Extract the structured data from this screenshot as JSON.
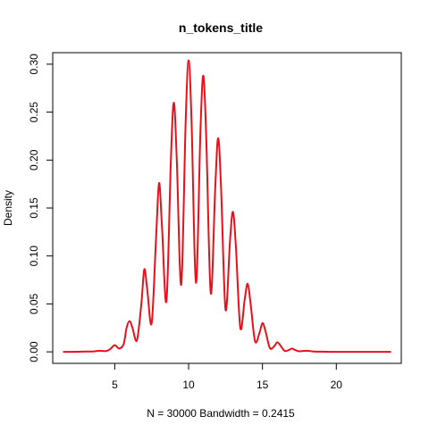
{
  "chart_data": {
    "type": "line",
    "title": "n_tokens_title",
    "xlabel": "N = 30000   Bandwidth = 0.2415",
    "ylabel": "Density",
    "xlim": [
      0.8,
      24.4
    ],
    "ylim": [
      -0.012,
      0.312
    ],
    "xticks": [
      5,
      10,
      15,
      20
    ],
    "yticks": [
      0.0,
      0.05,
      0.1,
      0.15,
      0.2,
      0.25,
      0.3
    ],
    "ytick_labels": [
      "0.00",
      "0.05",
      "0.10",
      "0.15",
      "0.20",
      "0.25",
      "0.30"
    ],
    "grid": false,
    "line_color": "#e8101a",
    "series": [
      {
        "x": [
          1.5,
          2,
          3,
          3.6,
          4,
          4.4,
          4.7,
          5,
          5.3,
          5.6,
          5.8,
          6,
          6.2,
          6.5,
          6.8,
          7,
          7.2,
          7.5,
          7.8,
          8,
          8.2,
          8.5,
          8.8,
          9,
          9.2,
          9.5,
          9.8,
          10,
          10.2,
          10.5,
          10.8,
          11,
          11.2,
          11.5,
          11.8,
          12,
          12.2,
          12.5,
          12.8,
          13,
          13.2,
          13.5,
          13.8,
          14,
          14.2,
          14.5,
          14.8,
          15,
          15.2,
          15.5,
          15.8,
          16,
          16.2,
          16.5,
          16.8,
          17,
          17.2,
          17.5,
          18,
          18.5,
          19,
          20,
          22,
          23.7
        ],
        "y": [
          0,
          0,
          0.0003,
          0.0005,
          0.0012,
          0.0008,
          0.003,
          0.007,
          0.0035,
          0.008,
          0.025,
          0.032,
          0.025,
          0.012,
          0.05,
          0.086,
          0.065,
          0.03,
          0.12,
          0.176,
          0.13,
          0.053,
          0.2,
          0.26,
          0.2,
          0.07,
          0.24,
          0.304,
          0.24,
          0.072,
          0.23,
          0.288,
          0.22,
          0.061,
          0.17,
          0.223,
          0.17,
          0.044,
          0.115,
          0.146,
          0.11,
          0.025,
          0.055,
          0.071,
          0.05,
          0.011,
          0.02,
          0.03,
          0.022,
          0.004,
          0.006,
          0.01,
          0.007,
          0.001,
          0.002,
          0.0035,
          0.002,
          0.0006,
          0.0012,
          0.0003,
          0.0002,
          0,
          0,
          0
        ]
      }
    ]
  }
}
